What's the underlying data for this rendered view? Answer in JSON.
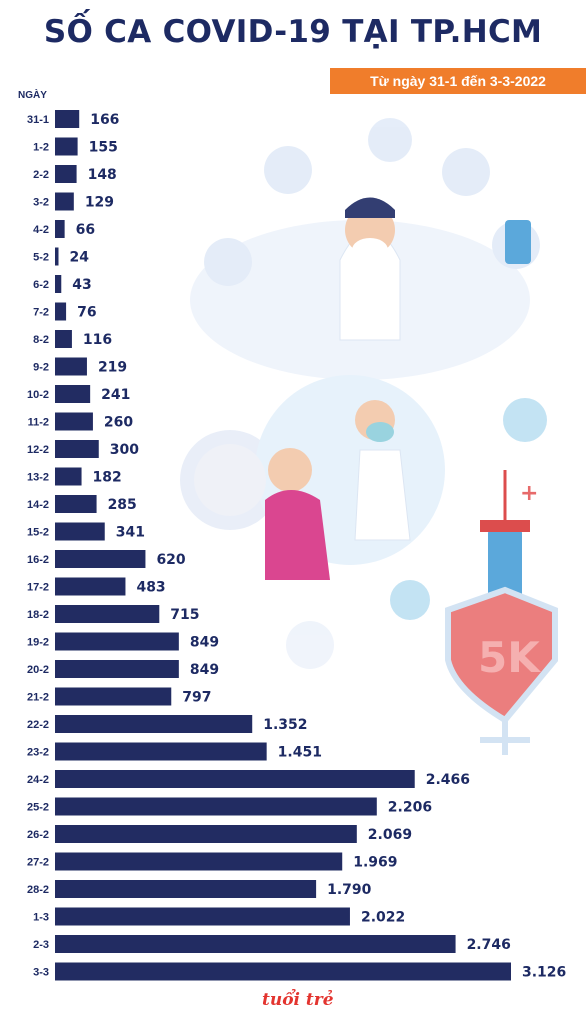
{
  "title": "SỐ CA COVID-19 TẠI TP.HCM",
  "subtitle": "Từ ngày 31-1 đến 3-3-2022",
  "logo_text": "tuổi trẻ",
  "colors": {
    "bar": "#222c62",
    "text": "#1d2a63",
    "accent": "#f07d2b",
    "logo": "#e3342f"
  },
  "chart_data": {
    "type": "bar",
    "orientation": "horizontal",
    "title": "SỐ CA COVID-19 TẠI TP.HCM",
    "subtitle": "Từ ngày 31-1 đến 3-3-2022",
    "ylabel": "NGÀY",
    "categories": [
      "31-1",
      "1-2",
      "2-2",
      "3-2",
      "4-2",
      "5-2",
      "6-2",
      "7-2",
      "8-2",
      "9-2",
      "10-2",
      "11-2",
      "12-2",
      "13-2",
      "14-2",
      "15-2",
      "16-2",
      "17-2",
      "18-2",
      "19-2",
      "20-2",
      "21-2",
      "22-2",
      "23-2",
      "24-2",
      "25-2",
      "26-2",
      "27-2",
      "28-2",
      "1-3",
      "2-3",
      "3-3"
    ],
    "values": [
      166,
      155,
      148,
      129,
      66,
      24,
      43,
      76,
      116,
      219,
      241,
      260,
      300,
      182,
      285,
      341,
      620,
      483,
      715,
      849,
      849,
      797,
      1352,
      1451,
      2466,
      2206,
      2069,
      1969,
      1790,
      2022,
      2746,
      3126
    ],
    "value_labels": [
      "166",
      "155",
      "148",
      "129",
      "66",
      "24",
      "43",
      "76",
      "116",
      "219",
      "241",
      "260",
      "300",
      "182",
      "285",
      "341",
      "620",
      "483",
      "715",
      "849",
      "849",
      "797",
      "1.352",
      "1.451",
      "2.466",
      "2.206",
      "2.069",
      "1.969",
      "1.790",
      "2.022",
      "2.746",
      "3.126"
    ],
    "xlim": [
      0,
      3126
    ],
    "grid": false,
    "legend": "none"
  }
}
